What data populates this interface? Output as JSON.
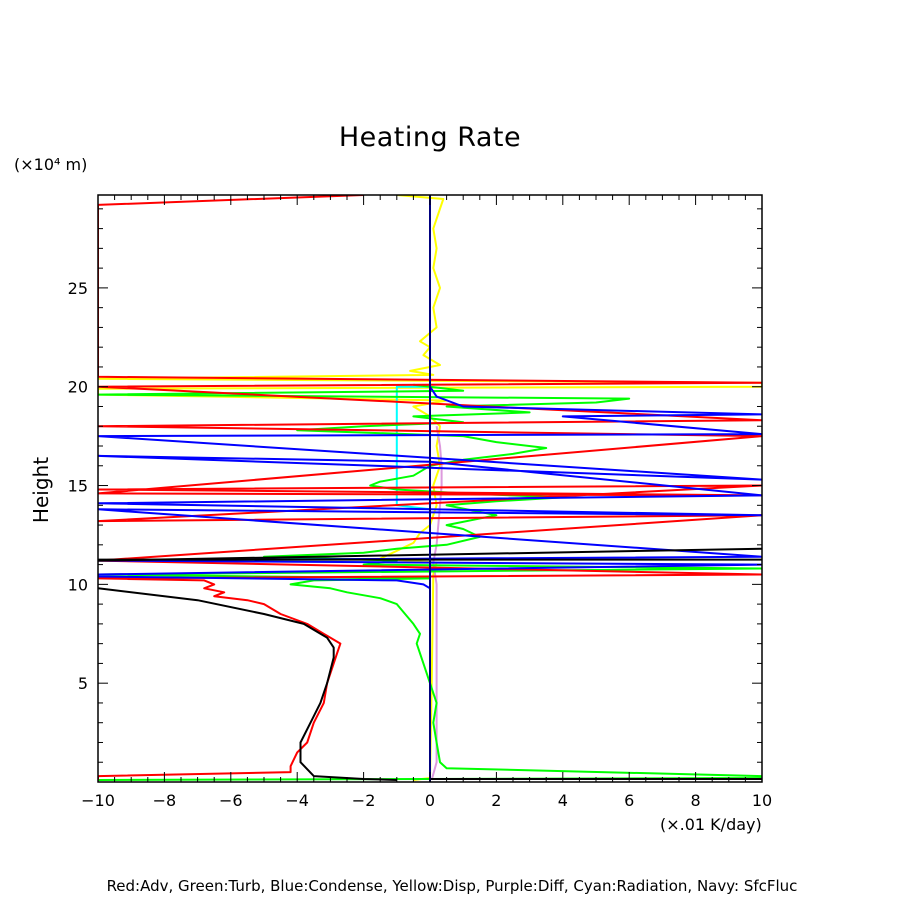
{
  "chart_data": {
    "type": "line",
    "title": "Heating Rate",
    "ylabel": "Height",
    "yunit": "(×10⁴ m)",
    "xunit": "(×.01 K/day)",
    "xlim": [
      -10,
      10
    ],
    "ylim": [
      0,
      29.7
    ],
    "xticks": [
      -10,
      -8,
      -6,
      -4,
      -2,
      0,
      2,
      4,
      6,
      8,
      10
    ],
    "yticks": [
      5,
      10,
      15,
      20,
      25
    ],
    "legend_text": "Red:Adv, Green:Turb, Blue:Condense, Yellow:Disp, Purple:Diff, Cyan:Radiation, Navy: SfcFluc",
    "legend_placement": "bottom",
    "grid": false,
    "series": [
      {
        "name": "Yellow:Disp",
        "color": "#ffff00",
        "points": [
          [
            -0.5,
            0.1
          ],
          [
            0,
            0.2
          ],
          [
            0.05,
            5
          ],
          [
            0.1,
            10.5
          ],
          [
            0.2,
            11.1
          ],
          [
            -1.5,
            11.3
          ],
          [
            -1,
            11.7
          ],
          [
            -0.5,
            12.1
          ],
          [
            -0.3,
            12.6
          ],
          [
            0,
            13
          ],
          [
            0.2,
            14
          ],
          [
            0.1,
            15
          ],
          [
            0.3,
            16
          ],
          [
            0.2,
            17
          ],
          [
            0.3,
            18
          ],
          [
            0,
            18.5
          ],
          [
            -0.5,
            19
          ],
          [
            0.5,
            19.3
          ],
          [
            -10,
            19.6
          ],
          [
            -10,
            19.9
          ],
          [
            10,
            20
          ],
          [
            10,
            20.2
          ],
          [
            -10,
            20.4
          ],
          [
            0.1,
            20.6
          ],
          [
            -0.6,
            20.8
          ],
          [
            0.3,
            21.1
          ],
          [
            -0.2,
            21.6
          ],
          [
            0,
            22
          ],
          [
            -0.3,
            22.3
          ],
          [
            0.2,
            23
          ],
          [
            0.1,
            24
          ],
          [
            0.3,
            25
          ],
          [
            0.1,
            26
          ],
          [
            0.2,
            27
          ],
          [
            0.1,
            28
          ],
          [
            0.4,
            29.5
          ],
          [
            -1,
            29.7
          ]
        ]
      },
      {
        "name": "Purple:Diff",
        "color": "#dd99dd",
        "points": [
          [
            0.05,
            0.1
          ],
          [
            0.2,
            1
          ],
          [
            0.2,
            5
          ],
          [
            0.2,
            10
          ],
          [
            0.1,
            11.1
          ],
          [
            0.2,
            12
          ],
          [
            0.25,
            13
          ],
          [
            0.3,
            14
          ],
          [
            0.35,
            15
          ],
          [
            0.35,
            16
          ],
          [
            0.3,
            17
          ],
          [
            0.2,
            18
          ]
        ]
      },
      {
        "name": "Cyan:Radiation",
        "color": "#00ffff",
        "points": [
          [
            -1,
            14
          ],
          [
            -1,
            20
          ],
          [
            0,
            20
          ],
          [
            -1,
            20
          ],
          [
            -1,
            14
          ],
          [
            0,
            13.8
          ]
        ]
      },
      {
        "name": "Green:Turb",
        "color": "#00ff00",
        "points": [
          [
            -10,
            0.1
          ],
          [
            10,
            0.2
          ],
          [
            10,
            0.3
          ],
          [
            0.5,
            0.7
          ],
          [
            0.3,
            1
          ],
          [
            0.2,
            2
          ],
          [
            0.1,
            3
          ],
          [
            0.2,
            4
          ],
          [
            0,
            5
          ],
          [
            -0.2,
            6
          ],
          [
            -0.4,
            7
          ],
          [
            -0.3,
            7.5
          ],
          [
            -0.5,
            8
          ],
          [
            -0.8,
            8.6
          ],
          [
            -1,
            9
          ],
          [
            -1.5,
            9.3
          ],
          [
            -2.5,
            9.6
          ],
          [
            -3,
            9.8
          ],
          [
            -4.2,
            10
          ],
          [
            -3.5,
            10.2
          ],
          [
            0,
            10.3
          ],
          [
            -10,
            10.5
          ],
          [
            10,
            10.8
          ],
          [
            -2,
            11
          ],
          [
            -1,
            11.2
          ],
          [
            -5,
            11.4
          ],
          [
            -2,
            11.6
          ],
          [
            -1,
            11.8
          ],
          [
            0.5,
            12
          ],
          [
            1.5,
            12.4
          ],
          [
            1,
            12.8
          ],
          [
            0.5,
            13
          ],
          [
            2,
            13.5
          ],
          [
            0.5,
            14
          ],
          [
            2,
            14.2
          ],
          [
            4,
            14.4
          ],
          [
            1,
            14.6
          ],
          [
            -1,
            14.8
          ],
          [
            -1.8,
            15
          ],
          [
            -1.5,
            15.2
          ],
          [
            -0.5,
            15.5
          ],
          [
            0,
            16
          ],
          [
            1,
            16.3
          ],
          [
            2.5,
            16.6
          ],
          [
            3.5,
            16.9
          ],
          [
            2,
            17.2
          ],
          [
            1,
            17.5
          ],
          [
            -4,
            17.8
          ],
          [
            -2,
            18
          ],
          [
            1,
            18.2
          ],
          [
            -0.5,
            18.5
          ],
          [
            3,
            18.7
          ],
          [
            0.5,
            19
          ],
          [
            5,
            19.2
          ],
          [
            6,
            19.4
          ],
          [
            -10,
            19.6
          ],
          [
            1,
            19.8
          ],
          [
            -0.5,
            20.1
          ]
        ]
      },
      {
        "name": "Red:Adv",
        "color": "#ff0000",
        "points": [
          [
            -10,
            0.1
          ],
          [
            -10,
            0.3
          ],
          [
            -4.2,
            0.5
          ],
          [
            -4.2,
            0.8
          ],
          [
            -4,
            1.5
          ],
          [
            -3.7,
            2
          ],
          [
            -3.5,
            3
          ],
          [
            -3.2,
            4
          ],
          [
            -3.1,
            5
          ],
          [
            -2.9,
            6
          ],
          [
            -2.8,
            6.5
          ],
          [
            -2.7,
            7
          ],
          [
            -3.2,
            7.5
          ],
          [
            -3.7,
            8
          ],
          [
            -4.5,
            8.5
          ],
          [
            -5,
            9
          ],
          [
            -5.5,
            9.2
          ],
          [
            -6,
            9.3
          ],
          [
            -6.5,
            9.4
          ],
          [
            -6.2,
            9.6
          ],
          [
            -6.8,
            9.8
          ],
          [
            -6.5,
            10
          ],
          [
            -6.8,
            10.2
          ],
          [
            -10,
            10.3
          ],
          [
            10,
            10.5
          ],
          [
            -10,
            11.2
          ],
          [
            10,
            13.5
          ],
          [
            -10,
            13.2
          ],
          [
            10,
            15
          ],
          [
            -10,
            14.8
          ],
          [
            10,
            14.5
          ],
          [
            -10,
            14.6
          ],
          [
            10,
            17.5
          ],
          [
            -10,
            18
          ],
          [
            10,
            18.3
          ],
          [
            -10,
            20
          ],
          [
            10,
            20.2
          ],
          [
            -10,
            20.5
          ],
          [
            -10,
            29.2
          ],
          [
            -2,
            29.7
          ]
        ]
      },
      {
        "name": "Blue:Condense",
        "color": "#0000ff",
        "points": [
          [
            0,
            0.1
          ],
          [
            0,
            9.8
          ],
          [
            -0.2,
            10
          ],
          [
            -1,
            10.2
          ],
          [
            -10,
            10.4
          ],
          [
            -10,
            10.5
          ],
          [
            10,
            11
          ],
          [
            -10,
            11.2
          ],
          [
            10,
            11.4
          ],
          [
            -10,
            13.8
          ],
          [
            10,
            13.5
          ],
          [
            -10,
            14.1
          ],
          [
            10,
            14.5
          ],
          [
            0,
            16.2
          ],
          [
            -10,
            16.5
          ],
          [
            10,
            15.3
          ],
          [
            -10,
            17.5
          ],
          [
            10,
            17.6
          ],
          [
            4,
            18.5
          ],
          [
            10,
            18.6
          ],
          [
            1,
            19
          ],
          [
            0.2,
            19.5
          ],
          [
            0,
            20
          ]
        ]
      },
      {
        "name": "Black",
        "color": "#000000",
        "points": [
          [
            -10,
            9.8
          ],
          [
            -7,
            9.2
          ],
          [
            -5,
            8.5
          ],
          [
            -3.8,
            8
          ],
          [
            -3.1,
            7.3
          ],
          [
            -2.9,
            6.8
          ],
          [
            -2.9,
            6.3
          ],
          [
            -3.1,
            5
          ],
          [
            -3.3,
            4
          ],
          [
            -3.6,
            3
          ],
          [
            -3.9,
            2
          ],
          [
            -3.9,
            1
          ],
          [
            -3.5,
            0.3
          ],
          [
            -2,
            0.15
          ],
          [
            -1,
            0.1
          ]
        ]
      },
      {
        "name": "Black-upper",
        "color": "#000000",
        "points": [
          [
            -10,
            11.2
          ],
          [
            10,
            11.8
          ]
        ]
      }
    ],
    "vertical_lines": [
      {
        "name": "Navy: SfcFluc",
        "color": "#000080",
        "x": 0,
        "y": [
          0,
          29.7
        ]
      }
    ],
    "horizontal_lines": [
      {
        "color": "#000000",
        "y": 0.15,
        "x": [
          0,
          10
        ]
      },
      {
        "color": "#000000",
        "y": 11.25,
        "x": [
          -10,
          10
        ]
      }
    ]
  }
}
